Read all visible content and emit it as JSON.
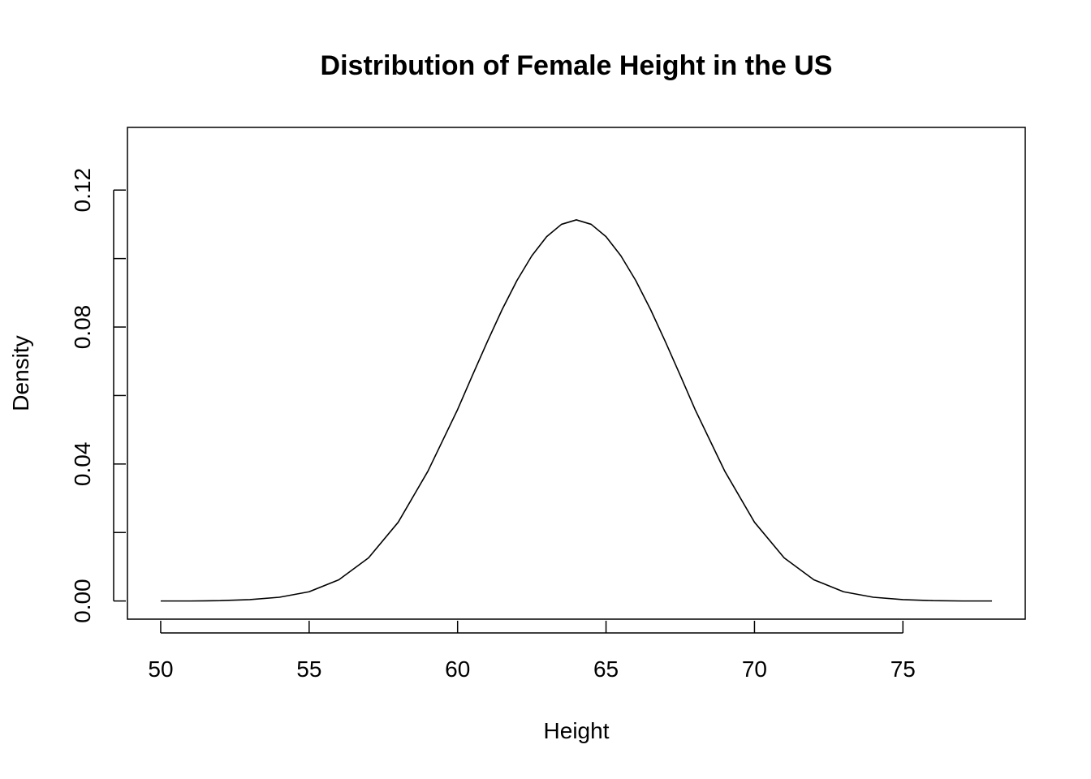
{
  "chart_data": {
    "type": "line",
    "title": "Distribution of Female Height in the US",
    "xlabel": "Height",
    "ylabel": "Density",
    "x_ticks": [
      50,
      55,
      60,
      65,
      70,
      75
    ],
    "y_ticks": [
      0.0,
      0.04,
      0.08,
      0.12
    ],
    "y_tick_labels": [
      "0.00",
      "0.04",
      "0.08",
      "0.12"
    ],
    "y_minor_ticks": [
      0.02,
      0.06,
      0.1
    ],
    "xlim": [
      48.88,
      79.12
    ],
    "ylim": [
      -0.0053,
      0.1383
    ],
    "grid": false,
    "line_color": "#000000",
    "series": [
      {
        "x": [
          50,
          51,
          52,
          53,
          54,
          55,
          56,
          57,
          58,
          59,
          60,
          60.5,
          61,
          61.5,
          62,
          62.5,
          63,
          63.5,
          64,
          64.5,
          65,
          65.5,
          66,
          66.5,
          67,
          67.5,
          68,
          69,
          70,
          71,
          72,
          73,
          74,
          75,
          76,
          77,
          78
        ],
        "values": [
          0.0,
          0.0,
          0.0001,
          0.0004,
          0.0011,
          0.0027,
          0.0062,
          0.0126,
          0.023,
          0.0379,
          0.0559,
          0.0659,
          0.0757,
          0.0851,
          0.0936,
          0.1008,
          0.1064,
          0.11,
          0.1113,
          0.11,
          0.1064,
          0.1008,
          0.0936,
          0.0851,
          0.0757,
          0.0659,
          0.0559,
          0.0379,
          0.023,
          0.0126,
          0.0062,
          0.0027,
          0.0011,
          0.0004,
          0.0001,
          0.0,
          0.0
        ]
      }
    ]
  }
}
